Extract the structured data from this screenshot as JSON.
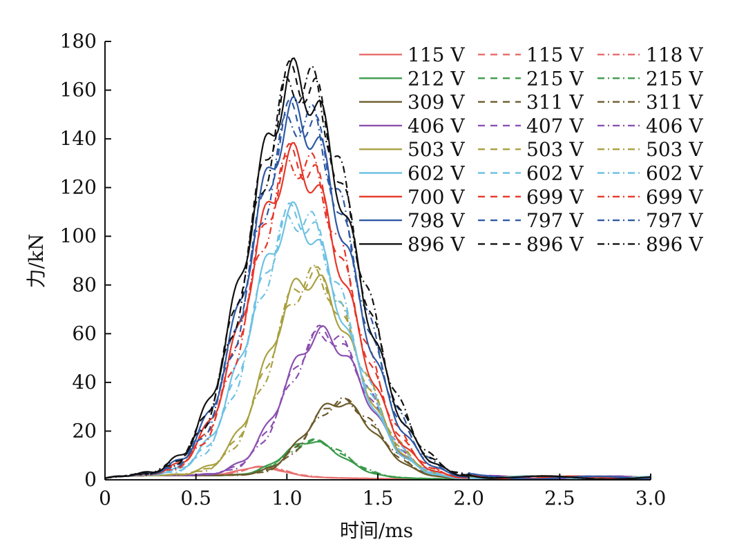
{
  "chart_data": {
    "type": "line",
    "xlabel": "时间/ms",
    "ylabel": "力/kN",
    "xlim": [
      0,
      3.0
    ],
    "ylim": [
      0,
      180
    ],
    "xticks": [
      "0",
      "0.5",
      "1.0",
      "1.5",
      "2.0",
      "2.5",
      "3.0"
    ],
    "yticks": [
      "0",
      "20",
      "40",
      "60",
      "80",
      "100",
      "120",
      "140",
      "160",
      "180"
    ],
    "grid": false,
    "legend_position": "top-right",
    "legend_columns": [
      {
        "style": "solid",
        "dash": ""
      },
      {
        "style": "dashed",
        "dash": "10 8"
      },
      {
        "style": "dashdot",
        "dash": "10 5 2 5"
      }
    ],
    "groups": [
      {
        "color": "#e8706f",
        "peak": 3.5,
        "tpeak": 0.85,
        "labels": [
          "115 V",
          "115 V",
          "118 V"
        ]
      },
      {
        "color": "#3a9a4a",
        "peak": 14,
        "tpeak": 1.13,
        "labels": [
          "212 V",
          "215 V",
          "215 V"
        ]
      },
      {
        "color": "#6b5a2a",
        "peak": 30,
        "tpeak": 1.28,
        "labels": [
          "309 V",
          "311 V",
          "311 V"
        ]
      },
      {
        "color": "#8b4fb0",
        "peak": 58,
        "tpeak": 1.19,
        "labels": [
          "406 V",
          "407 V",
          "406 V"
        ]
      },
      {
        "color": "#a9a040",
        "peak": 81,
        "tpeak": 1.12,
        "labels": [
          "503 V",
          "503 V",
          "503 V"
        ]
      },
      {
        "color": "#6ec1e4",
        "peak": 106,
        "tpeak": 1.04,
        "labels": [
          "602 V",
          "602 V",
          "602 V"
        ]
      },
      {
        "color": "#e63628",
        "peak": 129,
        "tpeak": 1.04,
        "labels": [
          "700 V",
          "699 V",
          "699 V"
        ]
      },
      {
        "color": "#2e59a3",
        "peak": 147,
        "tpeak": 1.05,
        "labels": [
          "798 V",
          "797 V",
          "797 V"
        ]
      },
      {
        "color": "#111111",
        "peak": 162,
        "tpeak": 1.05,
        "labels": [
          "896 V",
          "896 V",
          "896 V"
        ]
      }
    ]
  }
}
